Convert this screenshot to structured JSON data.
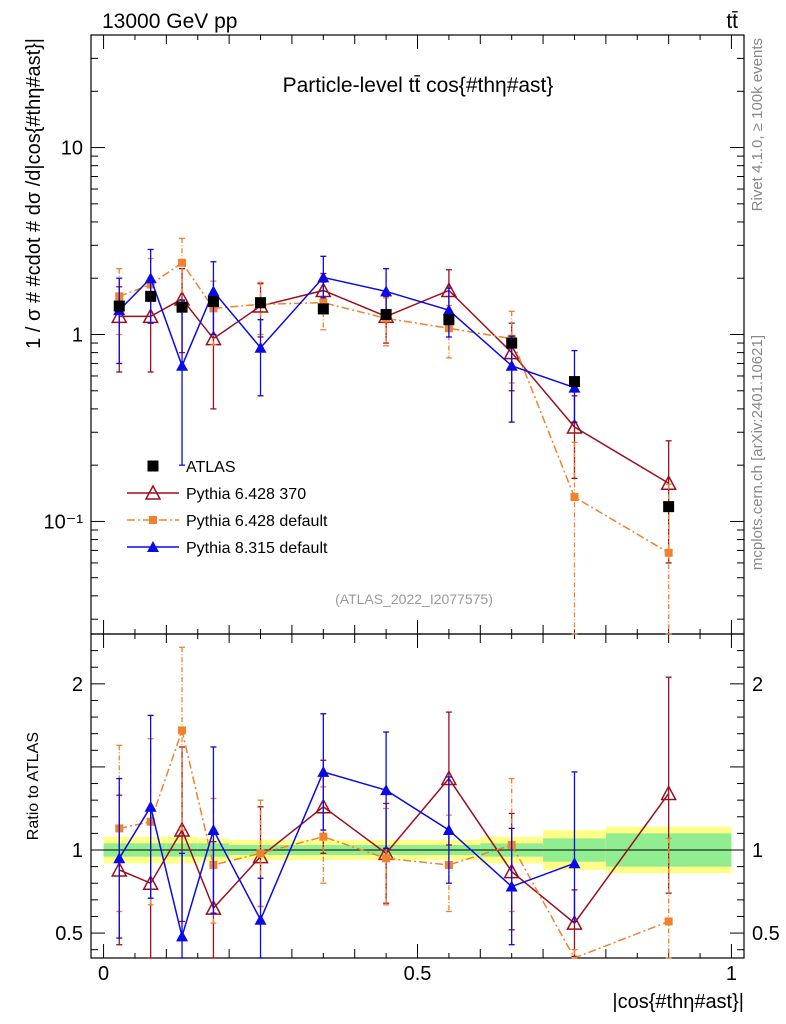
{
  "header": {
    "energy_label": "13000 GeV pp",
    "process_label": "tt̄",
    "title": "Particle-level tt̄ cos{#thη#ast}",
    "watermark": "(ATLAS_2022_I2077575)",
    "side_rivet": "Rivet 4.1.0, ≥ 100k events",
    "side_mcplots": "mcplots.cern.ch [arXiv:2401.10621]"
  },
  "axes": {
    "ylabel_main": "1 / σ # #cdot # dσ /d|cos{#thη#ast}|",
    "ylabel_ratio": "Ratio to ATLAS",
    "xlabel": "|cos{#thη#ast}|",
    "x_range": [
      -0.02,
      1.02
    ],
    "main_y_range_log": [
      0.025,
      40
    ],
    "ratio_y_range": [
      0.35,
      2.3
    ],
    "main_y_ticks": [
      {
        "v": 0.1,
        "label": "10⁻¹"
      },
      {
        "v": 1,
        "label": "1"
      },
      {
        "v": 10,
        "label": "10"
      }
    ],
    "ratio_y_ticks": [
      {
        "v": 0.5,
        "label": "0.5"
      },
      {
        "v": 1,
        "label": "1"
      },
      {
        "v": 2,
        "label": "2"
      }
    ],
    "x_ticks": [
      {
        "v": 0,
        "label": "0"
      },
      {
        "v": 0.5,
        "label": "0.5"
      },
      {
        "v": 1,
        "label": "1"
      }
    ]
  },
  "chart_data": {
    "type": "scatter",
    "bins": [
      [
        0,
        0.05
      ],
      [
        0.05,
        0.1
      ],
      [
        0.1,
        0.15
      ],
      [
        0.15,
        0.2
      ],
      [
        0.2,
        0.3
      ],
      [
        0.3,
        0.4
      ],
      [
        0.4,
        0.5
      ],
      [
        0.5,
        0.6
      ],
      [
        0.6,
        0.7
      ],
      [
        0.7,
        0.8
      ],
      [
        0.8,
        1.0
      ]
    ],
    "x": [
      0.025,
      0.075,
      0.125,
      0.175,
      0.25,
      0.35,
      0.45,
      0.55,
      0.65,
      0.75,
      0.9
    ],
    "series": [
      {
        "name": "ATLAS",
        "color": "#000000",
        "marker": "square",
        "line": "none",
        "values": [
          1.42,
          1.6,
          1.4,
          1.5,
          1.48,
          1.37,
          1.28,
          1.2,
          0.9,
          0.56,
          0.12
        ],
        "err_lo": [
          0.05,
          0.05,
          0.05,
          0.05,
          0.04,
          0.04,
          0.04,
          0.04,
          0.03,
          0.02,
          0.005
        ],
        "err_hi": [
          0.05,
          0.05,
          0.05,
          0.05,
          0.04,
          0.04,
          0.04,
          0.04,
          0.03,
          0.02,
          0.005
        ]
      },
      {
        "name": "Pythia 6.428 370",
        "color": "#9a1020",
        "marker": "open-triangle",
        "line": "solid",
        "values": [
          1.25,
          1.25,
          1.55,
          0.95,
          1.42,
          1.72,
          1.25,
          1.72,
          0.8,
          0.32,
          0.16
        ],
        "err_lo": [
          0.62,
          0.62,
          0.75,
          0.55,
          0.45,
          0.4,
          0.35,
          0.45,
          0.3,
          0.15,
          0.1
        ],
        "err_hi": [
          0.55,
          0.55,
          0.7,
          0.6,
          0.45,
          0.4,
          0.35,
          0.5,
          0.35,
          0.15,
          0.11
        ]
      },
      {
        "name": "Pythia 6.428 default",
        "color": "#f0822d",
        "marker": "square",
        "line": "dashdot",
        "values": [
          1.6,
          1.85,
          2.42,
          1.38,
          1.45,
          1.48,
          1.22,
          1.08,
          0.95,
          0.135,
          0.068
        ],
        "err_lo": [
          0.6,
          0.7,
          0.9,
          0.5,
          0.45,
          0.42,
          0.35,
          0.33,
          0.4,
          0.11,
          0.06
        ],
        "err_hi": [
          0.65,
          0.7,
          0.85,
          0.55,
          0.45,
          0.42,
          0.35,
          0.35,
          0.38,
          0.13,
          0.09
        ]
      },
      {
        "name": "Pythia 8.315 default",
        "color": "#0a0ae6",
        "marker": "filled-triangle",
        "line": "solid",
        "values": [
          1.35,
          2.0,
          0.68,
          1.7,
          0.85,
          2.02,
          1.7,
          1.35,
          0.68,
          0.52,
          null
        ],
        "err_lo": [
          0.65,
          0.85,
          0.48,
          0.7,
          0.38,
          0.45,
          0.42,
          0.38,
          0.34,
          0.18,
          null
        ],
        "err_hi": [
          0.65,
          0.85,
          0.85,
          0.75,
          0.35,
          0.6,
          0.55,
          0.42,
          0.3,
          0.3,
          null
        ]
      }
    ],
    "ratio_series": [
      {
        "name": "Pythia 6.428 370",
        "values": [
          0.88,
          0.8,
          1.12,
          0.65,
          0.96,
          1.26,
          0.98,
          1.43,
          0.87,
          0.56,
          1.34
        ],
        "err_lo": [
          0.45,
          0.5,
          0.55,
          0.35,
          0.3,
          0.28,
          0.3,
          0.4,
          0.35,
          0.2,
          0.6
        ],
        "err_hi": [
          0.45,
          0.45,
          0.5,
          0.4,
          0.3,
          0.28,
          0.3,
          0.4,
          0.35,
          0.2,
          0.7
        ]
      },
      {
        "name": "Pythia 6.428 default",
        "values": [
          1.13,
          1.17,
          1.72,
          0.91,
          0.98,
          1.08,
          0.95,
          0.91,
          1.03,
          0.25,
          0.57
        ],
        "err_lo": [
          0.5,
          0.5,
          0.6,
          0.35,
          0.32,
          0.28,
          0.28,
          0.28,
          0.4,
          0.15,
          0.5
        ],
        "err_hi": [
          0.5,
          0.5,
          0.5,
          0.4,
          0.32,
          0.3,
          0.3,
          0.3,
          0.4,
          0.15,
          0.5
        ]
      },
      {
        "name": "Pythia 8.315 default",
        "values": [
          0.95,
          1.26,
          0.48,
          1.12,
          0.58,
          1.47,
          1.36,
          1.12,
          0.78,
          0.92,
          null
        ],
        "err_lo": [
          0.48,
          0.55,
          0.35,
          0.5,
          0.25,
          0.35,
          0.35,
          0.32,
          0.35,
          0.35,
          null
        ],
        "err_hi": [
          0.48,
          0.55,
          0.5,
          0.5,
          0.25,
          0.35,
          0.35,
          0.32,
          0.35,
          0.55,
          null
        ]
      }
    ],
    "uncertainty_band": {
      "inner": [
        [
          0.96,
          1.04
        ],
        [
          0.96,
          1.04
        ],
        [
          0.96,
          1.04
        ],
        [
          0.96,
          1.04
        ],
        [
          0.97,
          1.03
        ],
        [
          0.97,
          1.03
        ],
        [
          0.97,
          1.03
        ],
        [
          0.97,
          1.03
        ],
        [
          0.96,
          1.04
        ],
        [
          0.93,
          1.07
        ],
        [
          0.9,
          1.1
        ]
      ],
      "outer": [
        [
          0.92,
          1.08
        ],
        [
          0.92,
          1.08
        ],
        [
          0.92,
          1.08
        ],
        [
          0.93,
          1.07
        ],
        [
          0.94,
          1.06
        ],
        [
          0.94,
          1.06
        ],
        [
          0.94,
          1.06
        ],
        [
          0.94,
          1.06
        ],
        [
          0.92,
          1.08
        ],
        [
          0.88,
          1.12
        ],
        [
          0.86,
          1.14
        ]
      ]
    }
  }
}
